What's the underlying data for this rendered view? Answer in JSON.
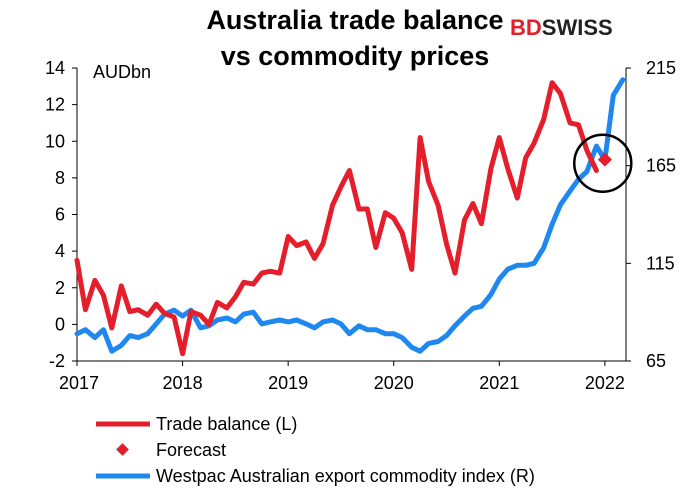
{
  "chart_data": {
    "type": "line",
    "title_lines": [
      "Australia trade balance",
      "vs commodity prices"
    ],
    "unit_label": "AUDbn",
    "brand": {
      "part1": "BD",
      "part2": "SWISS"
    },
    "x_tick_labels": [
      "2017",
      "2018",
      "2019",
      "2020",
      "2021",
      "2022"
    ],
    "x_tick_values": [
      2017,
      2018,
      2019,
      2020,
      2021,
      2022
    ],
    "x_range": [
      2017,
      2022.2
    ],
    "left_axis": {
      "range": [
        -2,
        14
      ],
      "ticks": [
        -2,
        0,
        2,
        4,
        6,
        8,
        10,
        12,
        14
      ]
    },
    "right_axis": {
      "range": [
        65,
        215
      ],
      "ticks": [
        65,
        115,
        165,
        215
      ]
    },
    "colors": {
      "trade": "#e41e2b",
      "forecast": "#e41e2b",
      "index": "#1e88f0",
      "circle": "#000000"
    },
    "series": [
      {
        "name": "Trade balance (L)",
        "axis": "left",
        "x": [
          2017.0,
          2017.08,
          2017.17,
          2017.25,
          2017.33,
          2017.42,
          2017.5,
          2017.58,
          2017.67,
          2017.75,
          2017.83,
          2017.92,
          2018.0,
          2018.08,
          2018.17,
          2018.25,
          2018.33,
          2018.42,
          2018.5,
          2018.58,
          2018.67,
          2018.75,
          2018.83,
          2018.92,
          2019.0,
          2019.08,
          2019.17,
          2019.25,
          2019.33,
          2019.42,
          2019.5,
          2019.58,
          2019.67,
          2019.75,
          2019.83,
          2019.92,
          2020.0,
          2020.08,
          2020.17,
          2020.25,
          2020.33,
          2020.42,
          2020.5,
          2020.58,
          2020.67,
          2020.75,
          2020.83,
          2020.92,
          2021.0,
          2021.08,
          2021.17,
          2021.25,
          2021.33,
          2021.42,
          2021.5,
          2021.58,
          2021.67,
          2021.75,
          2021.83,
          2021.92
        ],
        "values": [
          3.5,
          0.8,
          2.4,
          1.6,
          -0.2,
          2.1,
          0.7,
          0.8,
          0.5,
          1.1,
          0.6,
          0.4,
          -1.6,
          0.7,
          0.5,
          0.0,
          1.2,
          0.9,
          1.5,
          2.3,
          2.2,
          2.8,
          2.9,
          2.8,
          4.8,
          4.3,
          4.5,
          3.6,
          4.4,
          6.5,
          7.5,
          8.4,
          6.3,
          6.3,
          4.2,
          6.1,
          5.8,
          5.0,
          3.0,
          10.2,
          7.8,
          6.5,
          4.4,
          2.8,
          5.7,
          6.6,
          5.5,
          8.5,
          10.2,
          8.5,
          6.9,
          9.1,
          9.9,
          11.2,
          13.2,
          12.6,
          11.0,
          10.9,
          9.5,
          8.4
        ]
      },
      {
        "name": "Forecast",
        "axis": "left",
        "x": [
          2022.0
        ],
        "values": [
          9.0
        ]
      },
      {
        "name": "Westpac Australian export commodity index (R)",
        "axis": "right",
        "x": [
          2017.0,
          2017.08,
          2017.17,
          2017.25,
          2017.33,
          2017.42,
          2017.5,
          2017.58,
          2017.67,
          2017.75,
          2017.83,
          2017.92,
          2018.0,
          2018.08,
          2018.17,
          2018.25,
          2018.33,
          2018.42,
          2018.5,
          2018.58,
          2018.67,
          2018.75,
          2018.83,
          2018.92,
          2019.0,
          2019.08,
          2019.17,
          2019.25,
          2019.33,
          2019.42,
          2019.5,
          2019.58,
          2019.67,
          2019.75,
          2019.83,
          2019.92,
          2020.0,
          2020.08,
          2020.17,
          2020.25,
          2020.33,
          2020.42,
          2020.5,
          2020.58,
          2020.67,
          2020.75,
          2020.83,
          2020.92,
          2021.0,
          2021.08,
          2021.17,
          2021.25,
          2021.33,
          2021.42,
          2021.5,
          2021.58,
          2021.67,
          2021.75,
          2021.83,
          2021.92,
          2022.0,
          2022.08,
          2022.17
        ],
        "values": [
          79,
          81,
          77,
          81,
          70,
          73,
          78,
          77,
          79,
          84,
          89,
          91,
          88,
          91,
          82,
          83,
          86,
          87,
          85,
          89,
          90,
          84,
          85,
          86,
          85,
          86,
          84,
          82,
          85,
          86,
          84,
          79,
          83,
          81,
          81,
          79,
          79,
          77,
          72,
          70,
          74,
          75,
          78,
          83,
          88,
          92,
          93,
          99,
          107,
          112,
          114,
          114,
          115,
          123,
          135,
          145,
          152,
          158,
          162,
          175,
          168,
          201,
          209
        ]
      }
    ],
    "annotation": {
      "type": "circle",
      "center_x": 2021.98,
      "center_y_left": 8.8,
      "radius_years": 0.27
    }
  }
}
